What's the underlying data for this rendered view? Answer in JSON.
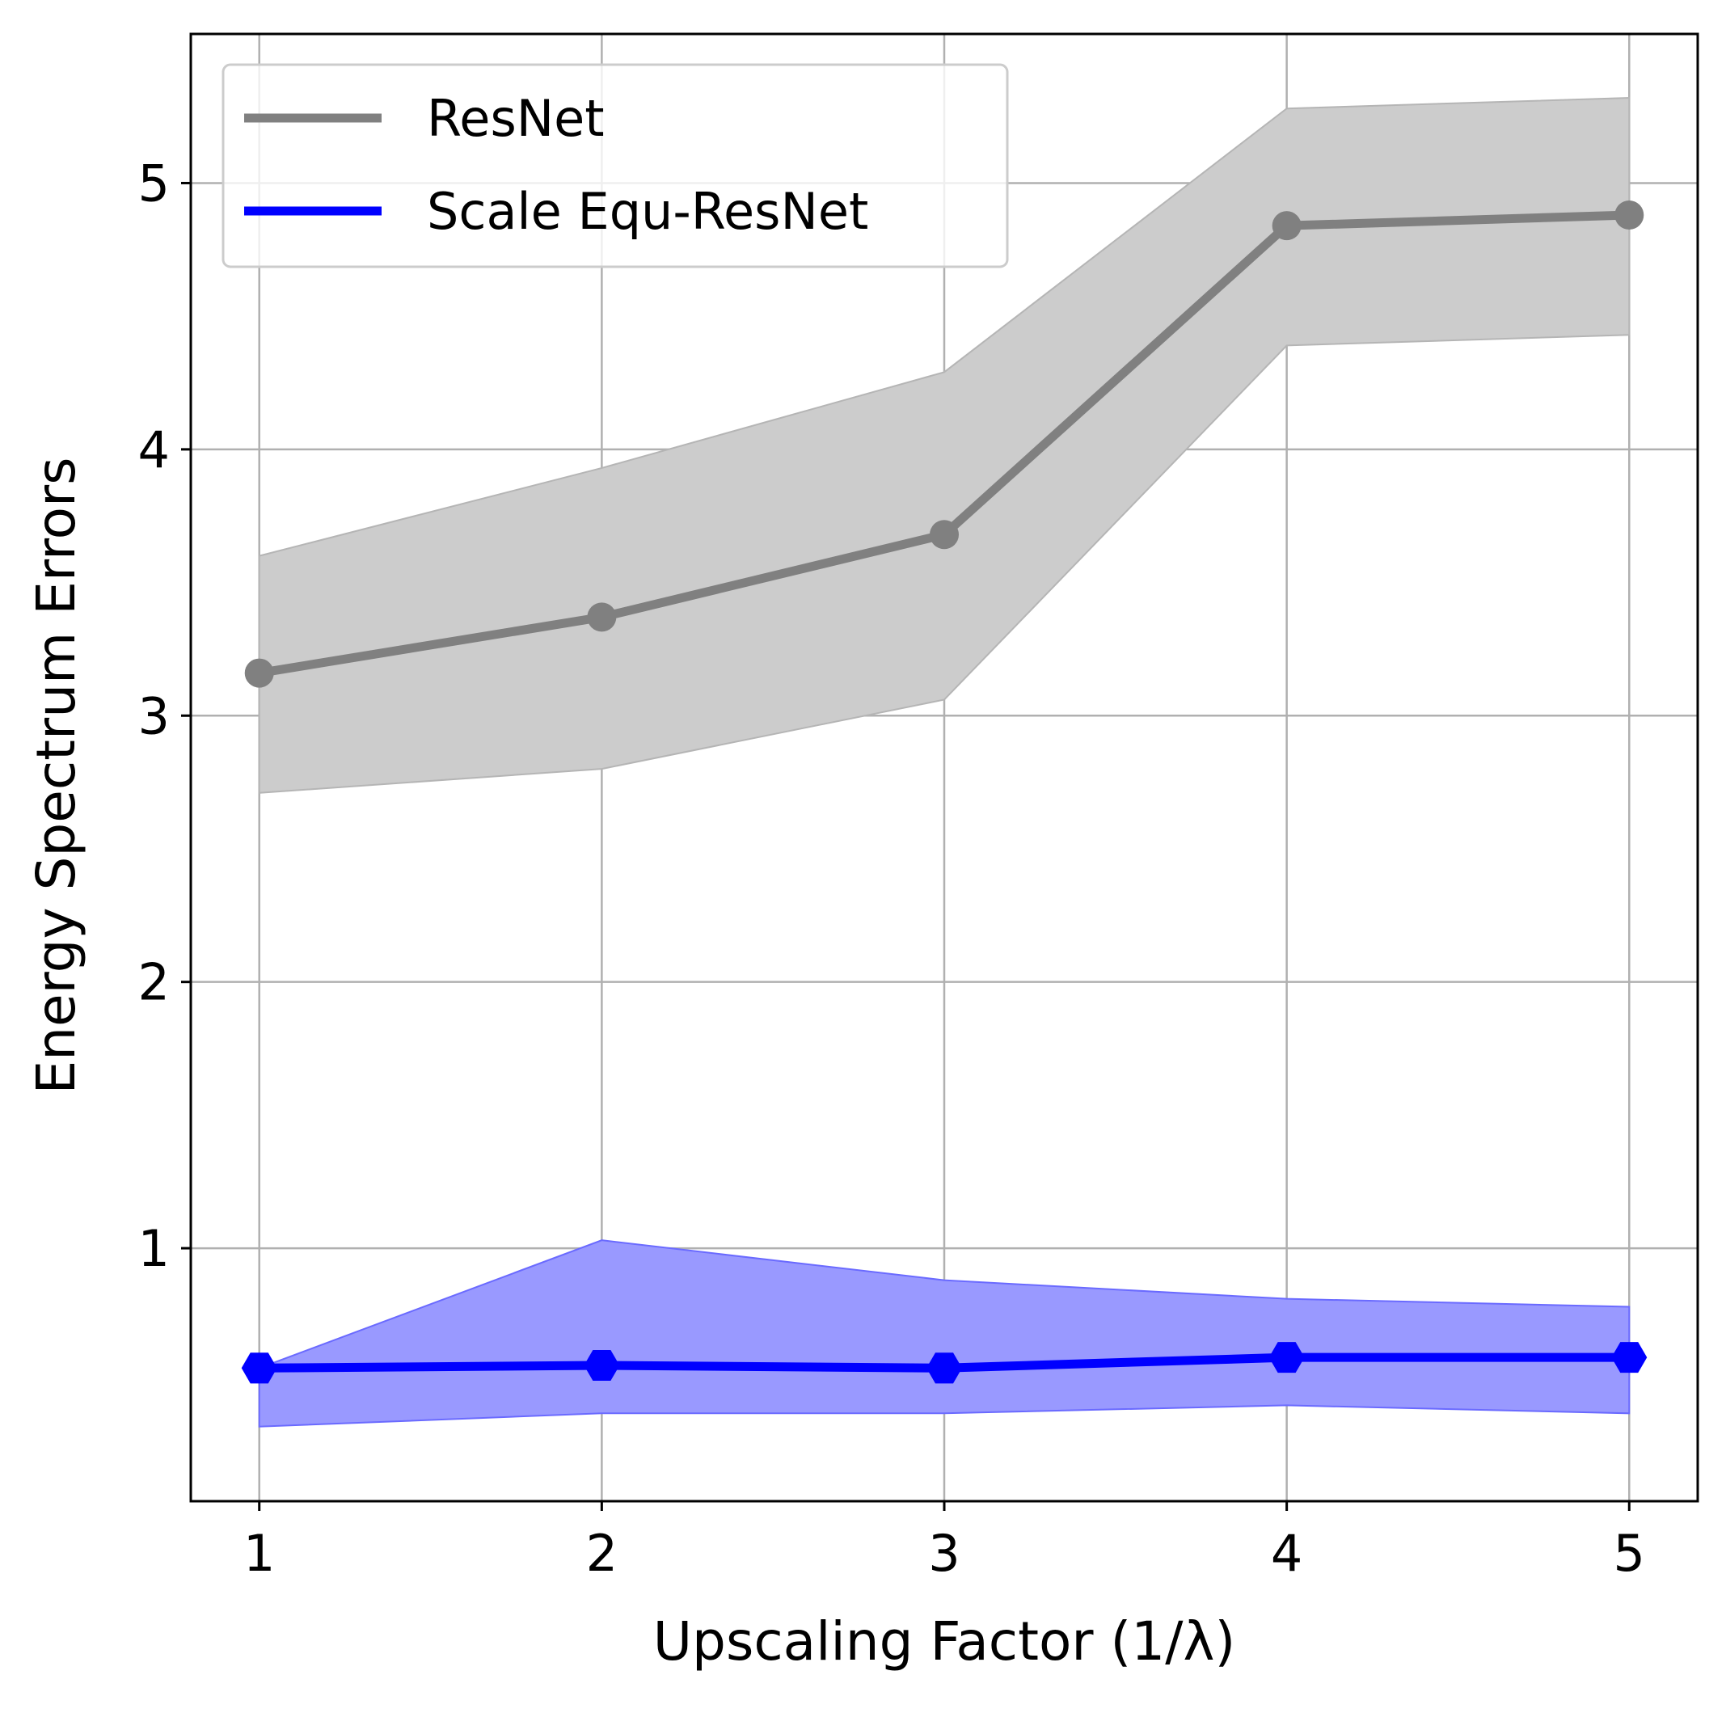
{
  "chart_data": {
    "type": "line",
    "title": "",
    "xlabel": "Upscaling Factor (1/λ)",
    "ylabel": "Energy Spectrum Errors",
    "x": [
      1,
      2,
      3,
      4,
      5
    ],
    "xlim": [
      0.8,
      5.2
    ],
    "ylim": [
      0.05,
      5.56
    ],
    "xticks": [
      "1",
      "2",
      "3",
      "4",
      "5"
    ],
    "yticks": [
      "1",
      "2",
      "3",
      "4",
      "5"
    ],
    "grid": true,
    "legend_position": "upper-left",
    "series": [
      {
        "name": "ResNet",
        "color": "#808080",
        "band_color": "#cccccc",
        "marker": "circle",
        "values": [
          3.16,
          3.37,
          3.68,
          4.84,
          4.88
        ],
        "lower": [
          2.71,
          2.8,
          3.06,
          4.39,
          4.43
        ],
        "upper": [
          3.6,
          3.93,
          4.29,
          5.28,
          5.32
        ]
      },
      {
        "name": "Scale Equ-ResNet",
        "color": "#0000ff",
        "band_color": "#9999ff",
        "marker": "hexagon",
        "values": [
          0.55,
          0.56,
          0.55,
          0.59,
          0.59
        ],
        "lower": [
          0.33,
          0.38,
          0.38,
          0.41,
          0.38
        ],
        "upper": [
          0.55,
          1.03,
          0.88,
          0.81,
          0.78
        ]
      }
    ]
  }
}
